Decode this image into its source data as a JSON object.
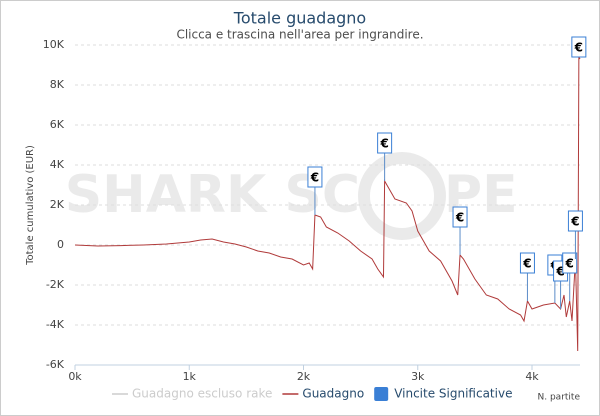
{
  "chart_data": {
    "type": "line",
    "title": "Totale guadagno",
    "subtitle": "Clicca e trascina nell'area per ingrandire.",
    "y_label": "Totale cumulativo (EUR)",
    "x_label": "N. partite",
    "watermark": [
      "SHARK SC",
      "PE"
    ],
    "xlim": [
      0,
      4420
    ],
    "xticks": [
      {
        "value": 0,
        "label": "0k"
      },
      {
        "value": 1000,
        "label": "1k"
      },
      {
        "value": 2000,
        "label": "2k"
      },
      {
        "value": 3000,
        "label": "3k"
      },
      {
        "value": 4000,
        "label": "4k"
      }
    ],
    "ylim": [
      -6000,
      10000
    ],
    "yticks": [
      {
        "value": -6000,
        "label": "-6K"
      },
      {
        "value": -4000,
        "label": "-4K"
      },
      {
        "value": -2000,
        "label": "-2K"
      },
      0,
      {
        "value": 2000,
        "label": "2K"
      },
      {
        "value": 4000,
        "label": "4K"
      },
      {
        "value": 6000,
        "label": "6K"
      },
      {
        "value": 8000,
        "label": "8K"
      },
      {
        "value": 10000,
        "label": "10K"
      }
    ],
    "grid": true,
    "legend": "bottom",
    "x": [
      0,
      200,
      400,
      600,
      800,
      1000,
      1100,
      1200,
      1300,
      1400,
      1500,
      1600,
      1700,
      1800,
      1900,
      2000,
      2050,
      2080,
      2100,
      2150,
      2200,
      2300,
      2400,
      2500,
      2600,
      2650,
      2700,
      2710,
      2750,
      2800,
      2900,
      2950,
      3000,
      3050,
      3100,
      3200,
      3300,
      3350,
      3370,
      3400,
      3500,
      3600,
      3700,
      3800,
      3900,
      3930,
      3960,
      4000,
      4100,
      4200,
      4250,
      4280,
      4300,
      4330,
      4350,
      4380,
      4400,
      4410,
      4420
    ],
    "series": [
      {
        "name": "Guadagno escluso rake",
        "color": "#cccccc",
        "visible": false
      },
      {
        "name": "Guadagno",
        "color": "#b03a3a",
        "visible": true,
        "values": [
          0,
          -50,
          -30,
          0,
          50,
          150,
          250,
          300,
          150,
          50,
          -100,
          -300,
          -400,
          -600,
          -700,
          -1000,
          -900,
          -1200,
          1500,
          1400,
          900,
          600,
          200,
          -300,
          -700,
          -1200,
          -1600,
          3200,
          2800,
          2300,
          2100,
          1700,
          700,
          200,
          -300,
          -800,
          -1800,
          -2500,
          -500,
          -700,
          -1700,
          -2500,
          -2700,
          -3200,
          -3500,
          -3800,
          -2800,
          -3200,
          -3000,
          -2900,
          -3200,
          -2500,
          -3600,
          -2800,
          -3800,
          -700,
          -5300,
          9400,
          9300
        ]
      }
    ],
    "flags": {
      "name": "Vincite Significative",
      "color": "#3a7fd5",
      "symbol": "€",
      "x": [
        2100,
        2710,
        3370,
        3960,
        4200,
        4250,
        4330,
        4380,
        4410
      ],
      "values": [
        1500,
        3200,
        -500,
        -2800,
        -2900,
        -3200,
        -2800,
        -700,
        9400
      ]
    }
  }
}
